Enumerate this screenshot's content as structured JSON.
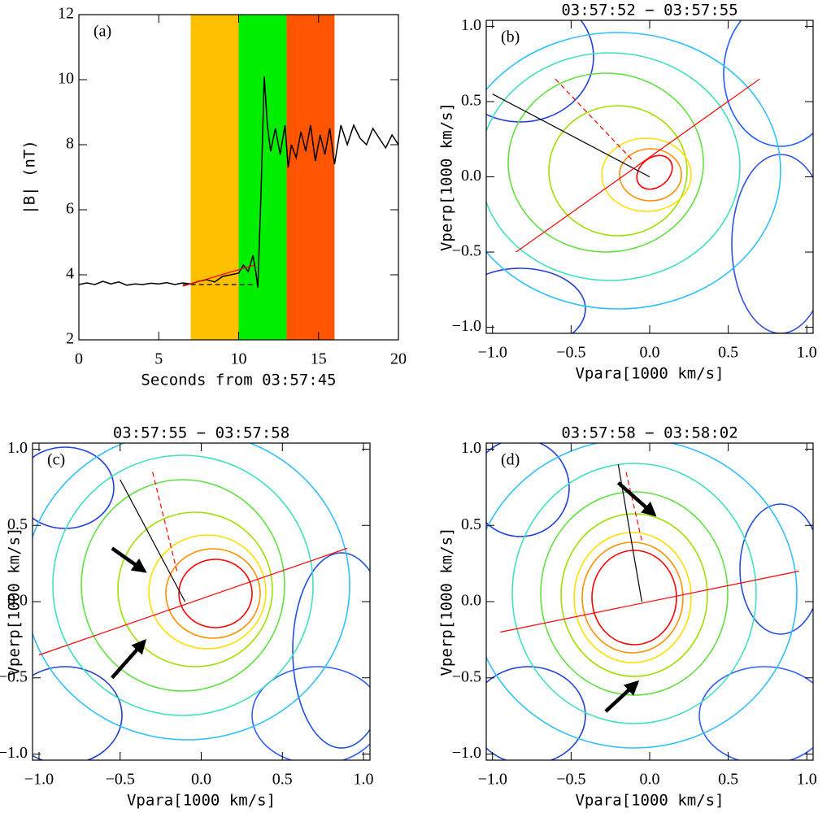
{
  "chart_data": [
    {
      "type": "line",
      "panel_label": "(a)",
      "xlabel": "Seconds from 03:57:45",
      "ylabel": "|B| (nT)",
      "xlim": [
        0,
        20
      ],
      "xticks": [
        0,
        5,
        10,
        15,
        20
      ],
      "ylim": [
        2,
        12
      ],
      "yticks": [
        2,
        4,
        6,
        8,
        10,
        12
      ],
      "bands": [
        {
          "x": [
            7,
            10
          ],
          "color": "#ffc000"
        },
        {
          "x": [
            10,
            13
          ],
          "color": "#00ee00"
        },
        {
          "x": [
            13,
            16
          ],
          "color": "#ff5500"
        }
      ],
      "lines": [
        {
          "x": [
            6.5,
            11
          ],
          "y": [
            3.7,
            3.7
          ],
          "color": "#000000",
          "dash": true
        },
        {
          "x": [
            6.5,
            11
          ],
          "y": [
            3.65,
            4.3
          ],
          "color": "#ff0000",
          "dash": false
        }
      ],
      "x": [
        0,
        0.5,
        1,
        1.5,
        2,
        2.5,
        3,
        3.5,
        4,
        4.5,
        5,
        5.5,
        6,
        6.5,
        7,
        7.5,
        8,
        8.5,
        9,
        9.5,
        10,
        10.3,
        10.6,
        10.9,
        11.1,
        11.2,
        11.4,
        11.6,
        11.8,
        12,
        12.3,
        12.6,
        12.9,
        13.1,
        13.3,
        13.6,
        13.9,
        14.2,
        14.5,
        14.8,
        15.1,
        15.4,
        15.7,
        16,
        16.4,
        16.8,
        17.2,
        17.6,
        18,
        18.4,
        18.8,
        19.2,
        19.6,
        20
      ],
      "series": [
        {
          "color": "#000000",
          "values": [
            3.7,
            3.75,
            3.7,
            3.8,
            3.72,
            3.78,
            3.68,
            3.72,
            3.7,
            3.74,
            3.72,
            3.76,
            3.7,
            3.75,
            3.72,
            3.8,
            3.85,
            3.78,
            3.95,
            4.0,
            4.05,
            4.3,
            4.1,
            4.6,
            4.0,
            3.6,
            6.5,
            10.1,
            8.6,
            7.8,
            8.5,
            7.7,
            8.6,
            7.3,
            8.0,
            7.6,
            8.4,
            7.8,
            8.6,
            7.5,
            8.3,
            7.7,
            8.5,
            7.4,
            8.6,
            8.0,
            8.6,
            8.2,
            8.0,
            8.5,
            8.2,
            7.9,
            8.3,
            8.0
          ]
        }
      ]
    },
    {
      "type": "contour",
      "title": "03:57:52 − 03:57:55",
      "panel_label": "(b)",
      "xlabel": "Vpara[1000 km/s]",
      "ylabel": "Vperp[1000 km/s]",
      "xlim": [
        -1.04,
        1.04
      ],
      "xticks": [
        {
          "value": -1,
          "label": "−1.0"
        },
        {
          "value": -0.5,
          "label": "−0.5"
        },
        {
          "value": 0,
          "label": "0.0"
        },
        0.5,
        {
          "value": 1,
          "label": "1.0"
        }
      ],
      "ylim": [
        -1.04,
        1.04
      ],
      "yticks": [
        {
          "value": -1,
          "label": "−1.0"
        },
        {
          "value": -0.5,
          "label": "−0.5"
        },
        {
          "value": 0,
          "label": "0.0"
        },
        0.5,
        {
          "value": 1,
          "label": "1.0"
        }
      ],
      "lines": [
        {
          "x": [
            -1.0,
            0
          ],
          "y": [
            0.55,
            0
          ],
          "color": "#000000",
          "dash": false
        },
        {
          "x": [
            -0.85,
            0.7
          ],
          "y": [
            -0.5,
            0.65
          ],
          "color": "#ff0000",
          "dash": false
        },
        {
          "x": [
            -0.6,
            -0.1
          ],
          "y": [
            0.65,
            0.1
          ],
          "color": "#ff0000",
          "dash": true
        }
      ],
      "arrows": []
    },
    {
      "type": "contour",
      "title": "03:57:55 − 03:57:58",
      "panel_label": "(c)",
      "xlabel": "Vpara[1000 km/s]",
      "ylabel": "Vperp[1000 km/s]",
      "xlim": [
        -1.04,
        1.04
      ],
      "xticks": [
        {
          "value": -1,
          "label": "−1.0"
        },
        {
          "value": -0.5,
          "label": "−0.5"
        },
        {
          "value": 0,
          "label": "0.0"
        },
        0.5,
        {
          "value": 1,
          "label": "1.0"
        }
      ],
      "ylim": [
        -1.04,
        1.04
      ],
      "yticks": [
        {
          "value": -1,
          "label": "−1.0"
        },
        {
          "value": -0.5,
          "label": "−0.5"
        },
        {
          "value": 0,
          "label": "0.0"
        },
        0.5,
        {
          "value": 1,
          "label": "1.0"
        }
      ],
      "lines": [
        {
          "x": [
            -0.5,
            -0.1
          ],
          "y": [
            0.8,
            0.0
          ],
          "color": "#000000",
          "dash": false
        },
        {
          "x": [
            -1.0,
            0.9
          ],
          "y": [
            -0.35,
            0.35
          ],
          "color": "#ff0000",
          "dash": false
        },
        {
          "x": [
            -0.3,
            -0.15
          ],
          "y": [
            0.85,
            0.2
          ],
          "color": "#ff0000",
          "dash": true
        }
      ],
      "arrows": [
        {
          "x": [
            -0.55,
            -0.35
          ],
          "y": [
            0.35,
            0.2
          ]
        },
        {
          "x": [
            -0.55,
            -0.35
          ],
          "y": [
            -0.5,
            -0.26
          ]
        }
      ]
    },
    {
      "type": "contour",
      "title": "03:57:58 − 03:58:02",
      "panel_label": "(d)",
      "xlabel": "Vpara[1000 km/s]",
      "ylabel": "Vperp[1000 km/s]",
      "xlim": [
        -1.04,
        1.04
      ],
      "xticks": [
        {
          "value": -1,
          "label": "−1.0"
        },
        {
          "value": -0.5,
          "label": "−0.5"
        },
        {
          "value": 0,
          "label": "0.0"
        },
        0.5,
        {
          "value": 1,
          "label": "1.0"
        }
      ],
      "ylim": [
        -1.04,
        1.04
      ],
      "yticks": [
        {
          "value": -1,
          "label": "−1.0"
        },
        {
          "value": -0.5,
          "label": "−0.5"
        },
        {
          "value": 0,
          "label": "0.0"
        },
        0.5,
        {
          "value": 1,
          "label": "1.0"
        }
      ],
      "lines": [
        {
          "x": [
            -0.2,
            -0.05
          ],
          "y": [
            0.9,
            0.0
          ],
          "color": "#000000",
          "dash": false
        },
        {
          "x": [
            -0.95,
            0.95
          ],
          "y": [
            -0.2,
            0.2
          ],
          "color": "#ff0000",
          "dash": false
        },
        {
          "x": [
            -0.15,
            -0.05
          ],
          "y": [
            0.85,
            0.4
          ],
          "color": "#ff0000",
          "dash": true
        }
      ],
      "arrows": [
        {
          "x": [
            -0.2,
            0.03
          ],
          "y": [
            0.78,
            0.57
          ]
        },
        {
          "x": [
            -0.28,
            -0.08
          ],
          "y": [
            -0.72,
            -0.53
          ]
        }
      ]
    }
  ]
}
